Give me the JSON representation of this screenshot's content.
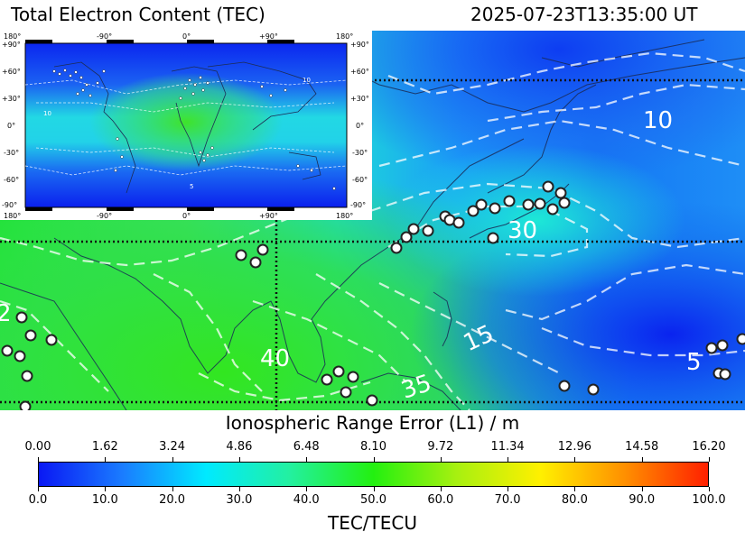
{
  "header": {
    "title": "Total Electron Content (TEC)",
    "timestamp": "2025-07-23T13:35:00 UT"
  },
  "main_map": {
    "region": "East Asia / Western Pacific",
    "contour_labels": [
      "10",
      "30",
      "15",
      "40",
      "35",
      "5",
      "2"
    ],
    "stations": 48
  },
  "inset_map": {
    "region": "global",
    "lon_labels": [
      "180°",
      "-90°",
      "0°",
      "+90°",
      "180°"
    ],
    "lat_labels": [
      "+90°",
      "+60°",
      "+30°",
      "0°",
      "-30°",
      "-60°",
      "-90°"
    ],
    "contour_labels": [
      "10",
      "10",
      "5"
    ]
  },
  "colorbar": {
    "top_title": "Ionospheric Range Error (L1) / m",
    "top_ticks": [
      "0.00",
      "1.62",
      "3.24",
      "4.86",
      "6.48",
      "8.10",
      "9.72",
      "11.34",
      "12.96",
      "14.58",
      "16.20"
    ],
    "bottom_ticks": [
      "0.0",
      "10.0",
      "20.0",
      "30.0",
      "40.0",
      "50.0",
      "60.0",
      "70.0",
      "80.0",
      "90.0",
      "100.0"
    ],
    "unit": "TEC/TECU",
    "range": [
      0,
      100
    ],
    "colors": [
      "#0a18f4",
      "#1a7cff",
      "#00eaff",
      "#23f0a0",
      "#23f010",
      "#a8f010",
      "#fff000",
      "#ff9000",
      "#ff2000"
    ]
  }
}
